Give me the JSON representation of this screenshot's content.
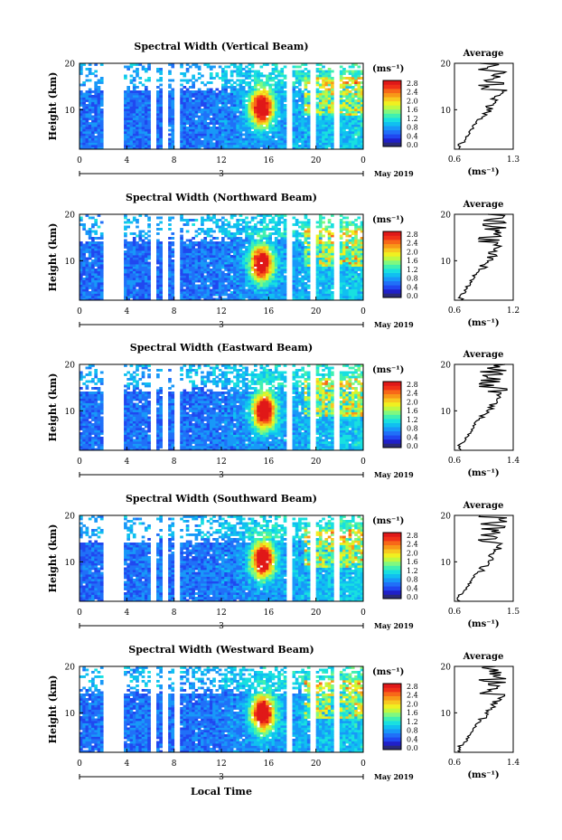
{
  "chart_data": {
    "type": "heatmap",
    "xlabel": "Local Time",
    "x_ticks": [
      "0",
      "4",
      "8",
      "12",
      "16",
      "20",
      "0"
    ],
    "date_tick": "3",
    "date_label": "May 2019",
    "y_ticks": [
      "20",
      "10"
    ],
    "ylabel": "Height (km)",
    "units": "(ms⁻¹)",
    "colorbar_ticks": [
      "2.8",
      "2.4",
      "2.0",
      "1.6",
      "1.2",
      "0.8",
      "0.4",
      "0.0"
    ],
    "colorbar_colors": [
      "#2a2a78",
      "#2020c8",
      "#2048f0",
      "#2070f8",
      "#1898f8",
      "#10c0f0",
      "#18e0e0",
      "#40f0b0",
      "#80f880",
      "#c0f840",
      "#f0f020",
      "#f8c820",
      "#f89818",
      "#f86818",
      "#f03018",
      "#e01818"
    ],
    "profile_title": "Average",
    "profile_xlabel": "(ms⁻¹)",
    "profile_y_ticks": [
      "20",
      "10"
    ],
    "panels": [
      {
        "title": "Spectral Width (Vertical Beam)",
        "profile_xticks": [
          "0.6",
          "1.3"
        ],
        "profile_xlim": [
          0.6,
          1.3
        ],
        "gaps": [
          [
            2.0,
            3.8
          ],
          [
            6.0,
            6.5
          ],
          [
            7.0,
            7.5
          ],
          [
            8.0,
            8.4
          ],
          [
            17.5,
            18.1
          ],
          [
            19.6,
            20.1
          ],
          [
            21.5,
            22.0
          ]
        ],
        "hotspot": {
          "t": 15.4,
          "h": 10.5,
          "intensity": 2.9
        }
      },
      {
        "title": "Spectral Width (Northward Beam)",
        "profile_xticks": [
          "0.6",
          "1.2"
        ],
        "profile_xlim": [
          0.6,
          1.2
        ],
        "gaps": [
          [
            2.0,
            3.8
          ],
          [
            6.0,
            6.5
          ],
          [
            7.0,
            7.5
          ],
          [
            8.0,
            8.4
          ],
          [
            17.5,
            18.1
          ],
          [
            19.6,
            20.1
          ],
          [
            21.5,
            22.0
          ]
        ],
        "hotspot": {
          "t": 15.4,
          "h": 9.5,
          "intensity": 2.8
        }
      },
      {
        "title": "Spectral Width (Eastward Beam)",
        "profile_xticks": [
          "0.6",
          "1.4"
        ],
        "profile_xlim": [
          0.6,
          1.4
        ],
        "gaps": [
          [
            2.0,
            3.8
          ],
          [
            6.0,
            6.5
          ],
          [
            7.0,
            7.5
          ],
          [
            8.0,
            8.4
          ],
          [
            17.5,
            18.1
          ],
          [
            19.6,
            20.1
          ],
          [
            21.5,
            22.0
          ]
        ],
        "hotspot": {
          "t": 15.6,
          "h": 10.0,
          "intensity": 2.9
        }
      },
      {
        "title": "Spectral Width (Southward Beam)",
        "profile_xticks": [
          "0.6",
          "1.5"
        ],
        "profile_xlim": [
          0.6,
          1.5
        ],
        "gaps": [
          [
            2.0,
            3.8
          ],
          [
            6.0,
            6.5
          ],
          [
            7.0,
            7.5
          ],
          [
            8.0,
            8.4
          ],
          [
            17.5,
            18.1
          ],
          [
            19.6,
            20.1
          ],
          [
            21.5,
            22.0
          ]
        ],
        "hotspot": {
          "t": 15.5,
          "h": 10.5,
          "intensity": 2.9
        }
      },
      {
        "title": "Spectral Width (Westward Beam)",
        "profile_xticks": [
          "0.6",
          "1.4"
        ],
        "profile_xlim": [
          0.6,
          1.4
        ],
        "gaps": [
          [
            2.0,
            3.8
          ],
          [
            6.0,
            6.5
          ],
          [
            7.0,
            7.5
          ],
          [
            8.0,
            8.4
          ],
          [
            17.5,
            18.1
          ],
          [
            19.6,
            20.1
          ],
          [
            21.5,
            22.0
          ]
        ],
        "hotspot": {
          "t": 15.5,
          "h": 10.0,
          "intensity": 2.9
        }
      }
    ]
  }
}
